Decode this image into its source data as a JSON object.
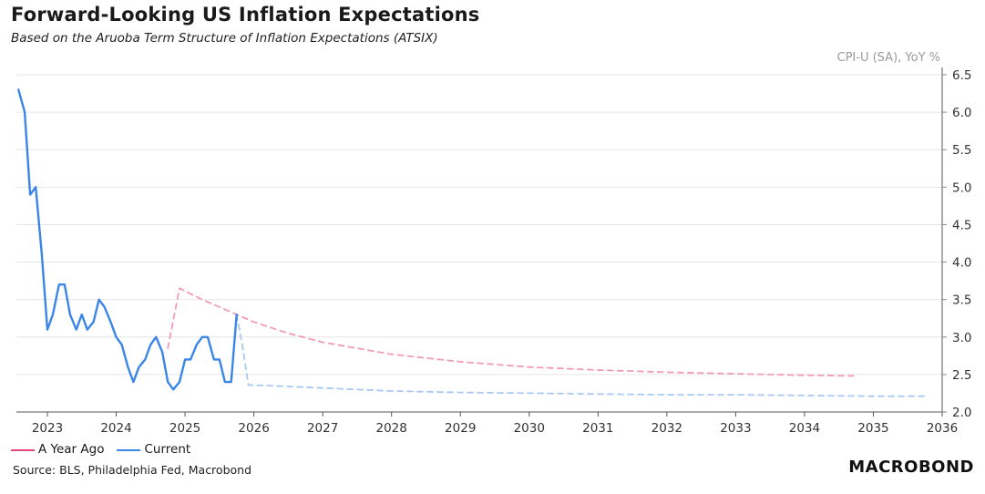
{
  "header": {
    "title": "Forward-Looking US Inflation Expectations",
    "subtitle": "Based on the Aruoba Term Structure of Inflation Expectations (ATSIX)",
    "unit_label": "CPI-U (SA), YoY %"
  },
  "footer": {
    "source": "Source: BLS, Philadelphia Fed, Macrobond",
    "logo_text": "MACROBOND"
  },
  "legend": [
    {
      "name": "A Year Ago",
      "color": "#e0457b"
    },
    {
      "name": "Current",
      "color": "#3a86e8"
    }
  ],
  "chart_data": {
    "type": "line",
    "xlim": [
      2022.55,
      2036.0
    ],
    "ylim": [
      2.0,
      6.5
    ],
    "x_ticks": [
      "2023",
      "2024",
      "2025",
      "2026",
      "2027",
      "2028",
      "2029",
      "2030",
      "2031",
      "2032",
      "2033",
      "2034",
      "2035",
      "2036"
    ],
    "y_ticks": [
      "2.0",
      "2.5",
      "3.0",
      "3.5",
      "4.0",
      "4.5",
      "5.0",
      "5.5",
      "6.0",
      "6.5"
    ],
    "grid": "horizontal",
    "y_axis_side": "right",
    "legend_placement": "bottom-left",
    "series": [
      {
        "name": "Current",
        "style": "solid",
        "color": "#3a86e8",
        "points": [
          [
            2022.58,
            6.3
          ],
          [
            2022.67,
            6.0
          ],
          [
            2022.75,
            4.9
          ],
          [
            2022.83,
            5.0
          ],
          [
            2022.92,
            4.1
          ],
          [
            2023.0,
            3.1
          ],
          [
            2023.08,
            3.3
          ],
          [
            2023.17,
            3.7
          ],
          [
            2023.25,
            3.7
          ],
          [
            2023.33,
            3.3
          ],
          [
            2023.42,
            3.1
          ],
          [
            2023.5,
            3.3
          ],
          [
            2023.58,
            3.1
          ],
          [
            2023.67,
            3.2
          ],
          [
            2023.75,
            3.5
          ],
          [
            2023.83,
            3.4
          ],
          [
            2023.92,
            3.2
          ],
          [
            2024.0,
            3.0
          ],
          [
            2024.08,
            2.9
          ],
          [
            2024.17,
            2.6
          ],
          [
            2024.25,
            2.4
          ],
          [
            2024.33,
            2.6
          ],
          [
            2024.42,
            2.7
          ],
          [
            2024.5,
            2.9
          ],
          [
            2024.58,
            3.0
          ],
          [
            2024.67,
            2.8
          ],
          [
            2024.75,
            2.4
          ],
          [
            2024.83,
            2.3
          ],
          [
            2024.92,
            2.4
          ],
          [
            2025.0,
            2.7
          ],
          [
            2025.08,
            2.7
          ],
          [
            2025.17,
            2.9
          ],
          [
            2025.25,
            3.0
          ],
          [
            2025.33,
            3.0
          ],
          [
            2025.42,
            2.7
          ],
          [
            2025.5,
            2.7
          ],
          [
            2025.58,
            2.4
          ],
          [
            2025.67,
            2.4
          ],
          [
            2025.75,
            3.3
          ]
        ]
      },
      {
        "name": "Current (projection)",
        "style": "dashed",
        "color": "#a9c9f2",
        "points": [
          [
            2025.75,
            3.3
          ],
          [
            2025.83,
            2.9
          ],
          [
            2025.92,
            2.36
          ],
          [
            2026.5,
            2.34
          ],
          [
            2027.0,
            2.32
          ],
          [
            2028.0,
            2.28
          ],
          [
            2029.0,
            2.26
          ],
          [
            2030.0,
            2.25
          ],
          [
            2031.0,
            2.24
          ],
          [
            2032.0,
            2.23
          ],
          [
            2033.0,
            2.23
          ],
          [
            2034.0,
            2.22
          ],
          [
            2035.0,
            2.21
          ],
          [
            2035.75,
            2.21
          ]
        ]
      },
      {
        "name": "A Year Ago (projection)",
        "style": "dashed",
        "color": "#f29bbb",
        "points": [
          [
            2024.75,
            2.85
          ],
          [
            2024.92,
            3.65
          ],
          [
            2025.25,
            3.5
          ],
          [
            2025.75,
            3.3
          ],
          [
            2026.0,
            3.2
          ],
          [
            2026.5,
            3.05
          ],
          [
            2027.0,
            2.93
          ],
          [
            2027.5,
            2.85
          ],
          [
            2028.0,
            2.77
          ],
          [
            2029.0,
            2.67
          ],
          [
            2030.0,
            2.6
          ],
          [
            2031.0,
            2.56
          ],
          [
            2032.0,
            2.53
          ],
          [
            2033.0,
            2.51
          ],
          [
            2034.0,
            2.49
          ],
          [
            2034.75,
            2.48
          ]
        ]
      }
    ]
  }
}
